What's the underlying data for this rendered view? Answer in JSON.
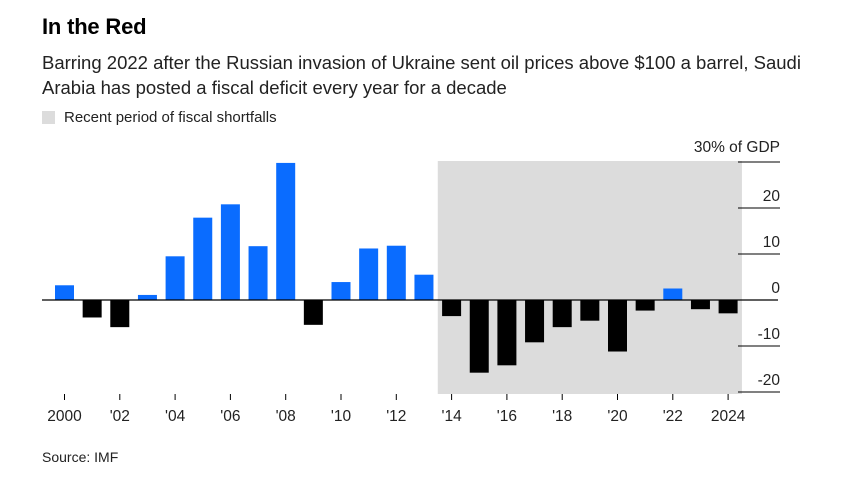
{
  "title": "In the Red",
  "subtitle": "Barring 2022 after the Russian invasion of Ukraine sent oil prices above $100 a barrel, Saudi Arabia has posted a fiscal deficit every year for a decade",
  "legend_label": "Recent period of fiscal shortfalls",
  "source": "Source: IMF",
  "colors": {
    "positive": "#0a6cff",
    "negative": "#000000",
    "shade": "#dcdcdc"
  },
  "chart_data": {
    "type": "bar",
    "x": [
      2000,
      2001,
      2002,
      2003,
      2004,
      2005,
      2006,
      2007,
      2008,
      2009,
      2010,
      2011,
      2012,
      2013,
      2014,
      2015,
      2016,
      2017,
      2018,
      2019,
      2020,
      2021,
      2022,
      2023,
      2024
    ],
    "values": [
      3.2,
      -3.8,
      -5.9,
      1.1,
      9.5,
      17.9,
      20.8,
      11.7,
      29.8,
      -5.4,
      3.9,
      11.2,
      11.8,
      5.5,
      -3.5,
      -15.8,
      -14.2,
      -9.2,
      -5.9,
      -4.5,
      -11.2,
      -2.3,
      2.5,
      -2.0,
      -2.9
    ],
    "ylim": [
      -22,
      30
    ],
    "y_unit_label": "30% of GDP",
    "y_ticks": [
      {
        "value": 20,
        "label": "20"
      },
      {
        "value": 10,
        "label": "10"
      },
      {
        "value": 0,
        "label": "0"
      },
      {
        "value": -10,
        "label": "-10"
      },
      {
        "value": -20,
        "label": "-20"
      }
    ],
    "x_ticks": [
      {
        "year": 2000,
        "label": "2000"
      },
      {
        "year": 2002,
        "label": "'02"
      },
      {
        "year": 2004,
        "label": "'04"
      },
      {
        "year": 2006,
        "label": "'06"
      },
      {
        "year": 2008,
        "label": "'08"
      },
      {
        "year": 2010,
        "label": "'10"
      },
      {
        "year": 2012,
        "label": "'12"
      },
      {
        "year": 2014,
        "label": "'14"
      },
      {
        "year": 2016,
        "label": "'16"
      },
      {
        "year": 2018,
        "label": "'18"
      },
      {
        "year": 2020,
        "label": "'20"
      },
      {
        "year": 2022,
        "label": "'22"
      },
      {
        "year": 2024,
        "label": "2024"
      }
    ],
    "shaded_range": [
      2014,
      2024
    ],
    "grid": false
  }
}
